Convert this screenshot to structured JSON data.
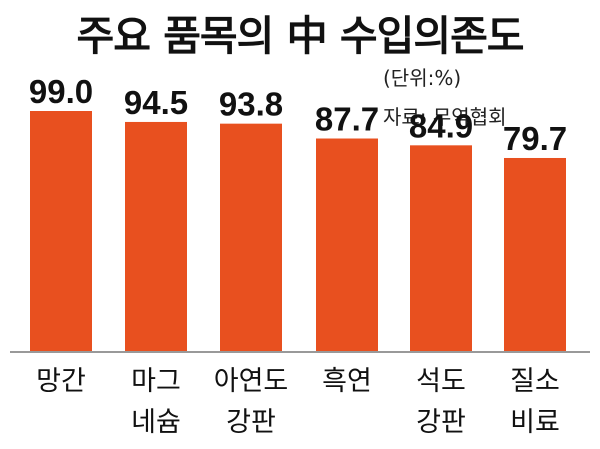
{
  "chart_data": {
    "type": "bar",
    "title": "주요 품목의 中 수입의존도",
    "unit_note": "(단위:%)",
    "source_note": "자료: 무역협회",
    "categories": [
      [
        "망간"
      ],
      [
        "마그",
        "네슘"
      ],
      [
        "아연도",
        "강판"
      ],
      [
        "흑연"
      ],
      [
        "석도",
        "강판"
      ],
      [
        "질소",
        "비료"
      ]
    ],
    "values": [
      99.0,
      94.5,
      93.8,
      87.7,
      84.9,
      79.7
    ],
    "value_labels": [
      "99.0",
      "94.5",
      "93.8",
      "87.7",
      "84.9",
      "79.7"
    ],
    "ylim": [
      0,
      100
    ],
    "grid": false,
    "bar_color": "#E8501F",
    "baseline_color": "#999999"
  }
}
